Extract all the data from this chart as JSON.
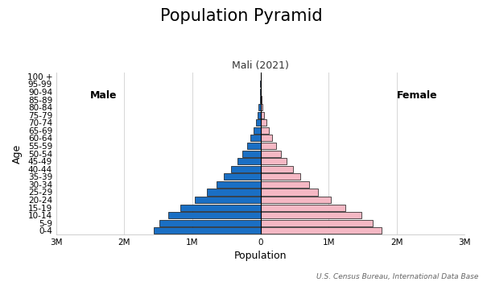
{
  "title": "Population Pyramid",
  "subtitle": "Mali (2021)",
  "xlabel": "Population",
  "ylabel": "Age",
  "source": "U.S. Census Bureau, International Data Base",
  "male_label": "Male",
  "female_label": "Female",
  "age_groups": [
    "0-4",
    "5-9",
    "10-14",
    "15-19",
    "20-24",
    "25-29",
    "30-34",
    "35-39",
    "40-44",
    "45-49",
    "50-54",
    "55-59",
    "60-64",
    "65-69",
    "70-74",
    "75-79",
    "80-84",
    "85-89",
    "90-94",
    "95-99",
    "100 +"
  ],
  "male_values": [
    1570000,
    1490000,
    1360000,
    1180000,
    960000,
    790000,
    650000,
    540000,
    430000,
    340000,
    265000,
    200000,
    145000,
    100000,
    70000,
    45000,
    25000,
    12000,
    4500,
    1200,
    300
  ],
  "female_values": [
    1780000,
    1650000,
    1480000,
    1250000,
    1030000,
    850000,
    710000,
    590000,
    480000,
    385000,
    305000,
    235000,
    172000,
    122000,
    86000,
    57000,
    33000,
    16000,
    6000,
    1600,
    400
  ],
  "male_color": "#1a6fc4",
  "female_color": "#f5b8c4",
  "bar_edge_color": "#111111",
  "bar_edge_width": 0.5,
  "xlim": 3000000,
  "background_color": "#ffffff",
  "title_fontsize": 15,
  "subtitle_fontsize": 9,
  "label_fontsize": 9,
  "tick_fontsize": 7.5,
  "source_fontsize": 6.5,
  "grid_color": "#d0d0d0",
  "grid_linewidth": 0.6
}
